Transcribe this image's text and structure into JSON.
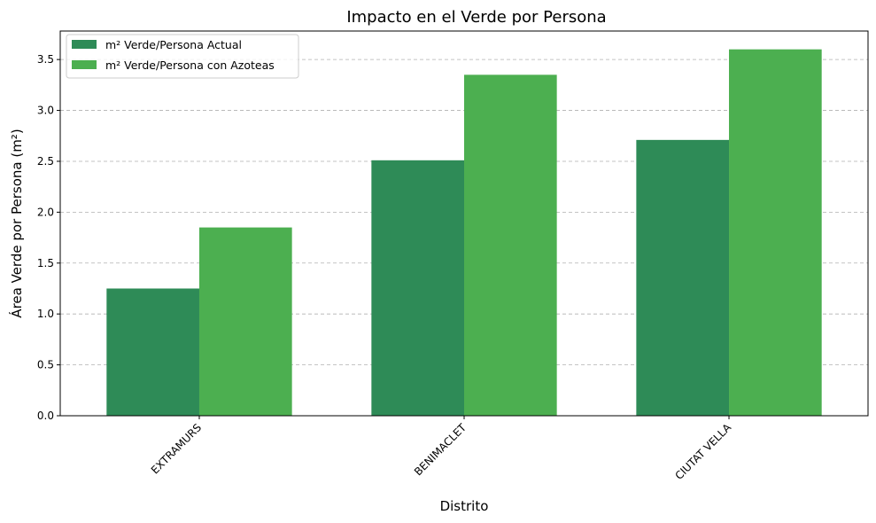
{
  "chart_data": {
    "type": "bar",
    "title": "Impacto en el Verde por Persona",
    "xlabel": "Distrito",
    "ylabel": "Área Verde por Persona (m²)",
    "categories": [
      "EXTRAMURS",
      "BENIMACLET",
      "CIUTAT VELLA"
    ],
    "series": [
      {
        "name": "m² Verde/Persona Actual",
        "values": [
          1.25,
          2.51,
          2.71
        ],
        "color": "#2e8b57"
      },
      {
        "name": "m² Verde/Persona con Azoteas",
        "values": [
          1.85,
          3.35,
          3.6
        ],
        "color": "#4caf50"
      }
    ],
    "ylim": [
      0,
      3.78
    ],
    "yticks": [
      "0.0",
      "0.5",
      "1.0",
      "1.5",
      "2.0",
      "2.5",
      "3.0",
      "3.5"
    ],
    "grid": "y-dashed",
    "legend_position": "top-left"
  }
}
